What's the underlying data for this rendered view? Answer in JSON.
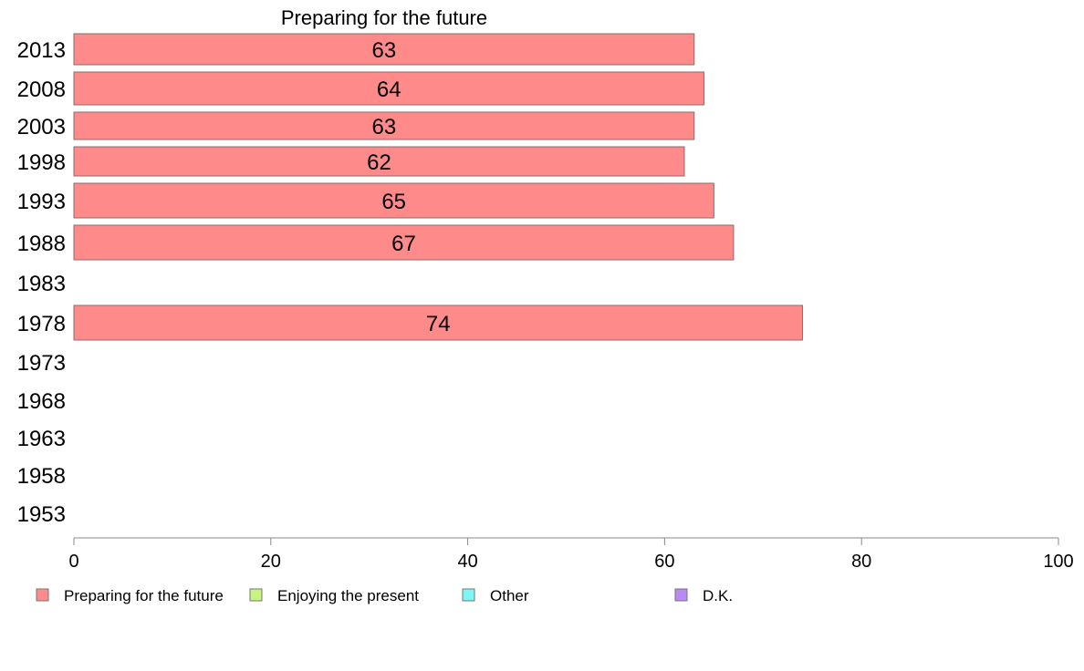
{
  "chart_data": {
    "type": "bar",
    "orientation": "horizontal",
    "title": "Preparing for the future",
    "categories": [
      "2013",
      "2008",
      "2003",
      "1998",
      "1993",
      "1988",
      "1983",
      "1978",
      "1973",
      "1968",
      "1963",
      "1958",
      "1953"
    ],
    "series": [
      {
        "name": "Preparing for the future",
        "color": "#ff8a8a",
        "values": [
          63,
          64,
          63,
          62,
          65,
          67,
          null,
          74,
          null,
          null,
          null,
          null,
          null
        ]
      }
    ],
    "xlim": [
      0,
      100
    ],
    "xticks": [
      0,
      20,
      40,
      60,
      80,
      100
    ],
    "grid": false,
    "legend": {
      "placement": "bottom",
      "entries": [
        {
          "label": "Preparing for the future",
          "color": "#ff8a8a"
        },
        {
          "label": "Enjoying the present",
          "color": "#c6f57f"
        },
        {
          "label": "Other",
          "color": "#7ff5f5"
        },
        {
          "label": "D.K.",
          "color": "#b98af5"
        }
      ]
    }
  }
}
